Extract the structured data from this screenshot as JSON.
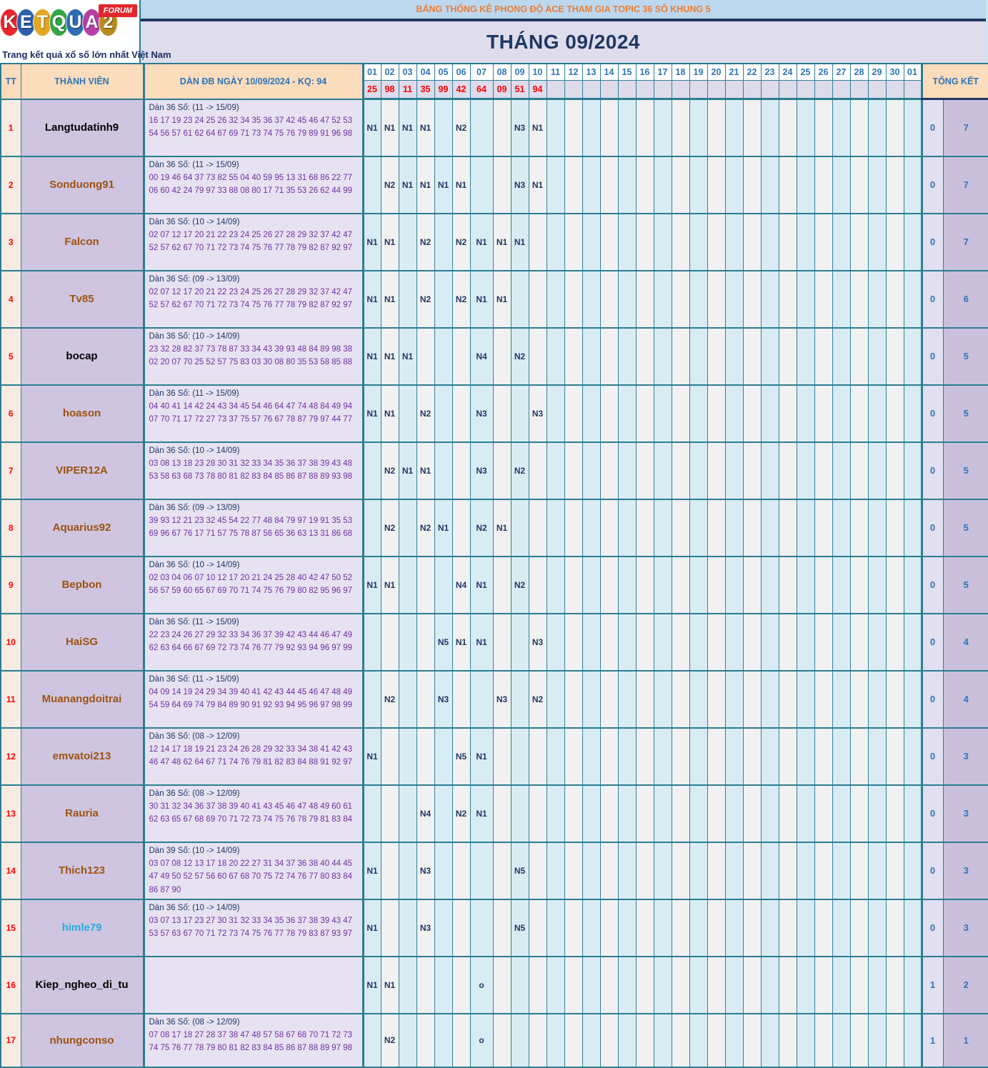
{
  "logo": {
    "letters": [
      {
        "ch": "K",
        "bg": "#e8262d"
      },
      {
        "ch": "E",
        "bg": "#2b5fac"
      },
      {
        "ch": "T",
        "bg": "#e3a723"
      },
      {
        "ch": "Q",
        "bg": "#33a646"
      },
      {
        "ch": "U",
        "bg": "#2e6db4"
      },
      {
        "ch": "A",
        "bg": "#b43ea5"
      },
      {
        "ch": "2",
        "bg": "#b78a1e"
      }
    ],
    "forum_badge": "FORUM",
    "tagline": "Trang kết quả xổ số lớn nhất Việt Nam"
  },
  "header": {
    "top_title": "BẢNG THỐNG KÊ PHONG ĐỘ ACE THAM GIA TOPIC 36 SỐ KHUNG 5",
    "month_title": "THÁNG 09/2024"
  },
  "columns": {
    "tt": "TT",
    "member": "THÀNH VIÊN",
    "dan": "DÀN ĐB NGÀY 10/09/2024 - KQ: 94",
    "total": "TỔNG KẾT",
    "days": [
      "01",
      "02",
      "03",
      "04",
      "05",
      "06",
      "07",
      "08",
      "09",
      "10",
      "11",
      "12",
      "13",
      "14",
      "15",
      "16",
      "17",
      "18",
      "19",
      "20",
      "21",
      "22",
      "23",
      "24",
      "25",
      "26",
      "27",
      "28",
      "29",
      "30",
      "01"
    ]
  },
  "results": [
    "25",
    "98",
    "11",
    "35",
    "99",
    "42",
    "64",
    "09",
    "51",
    "94"
  ],
  "colors": {
    "border_teal": "#2b7d92",
    "navy": "#1f3864",
    "orange_title": "#ed7d31",
    "blue_header_text": "#2e75b6",
    "red_result": "#ff0000",
    "purple_numbers": "#7030a0",
    "member_brown": "#9c5312",
    "member_cyan": "#29abe2"
  },
  "rows": [
    {
      "tt": "1",
      "name": "Langtudatinh9",
      "name_color": "#000000",
      "dan_title": "Dàn 36 Số: (11 -> 15/09)",
      "dan_numbers": "16 17 19 23 24 25 26 32 34 35 36 37 42 45 46 47 52 53 54 56 57 61 62 64 67 69 71 73 74 75 76 79 89 91 96 98",
      "marks": {
        "1": "N1",
        "2": "N1",
        "3": "N1",
        "4": "N1",
        "6": "N2",
        "9": "N3",
        "10": "N1"
      },
      "total1": "0",
      "total2": "7"
    },
    {
      "tt": "2",
      "name": "Sonduong91",
      "name_color": "#9c5312",
      "dan_title": "Dàn 36 Số: (11 -> 15/09)",
      "dan_numbers": "00 19 46 64 37 73 82 55 04 40 59 95 13 31 68 86 22 77 06 60 42 24 79 97 33 88 08 80 17 71 35 53 26 62 44 99",
      "marks": {
        "2": "N2",
        "3": "N1",
        "4": "N1",
        "5": "N1",
        "6": "N1",
        "9": "N3",
        "10": "N1"
      },
      "total1": "0",
      "total2": "7"
    },
    {
      "tt": "3",
      "name": "Falcon",
      "name_color": "#9c5312",
      "dan_title": "Dàn 36 Số: (10 -> 14/09)",
      "dan_numbers": "02 07 12 17 20 21 22 23 24 25 26 27 28 29 32 37 42 47 52 57 62 67 70 71 72 73 74 75 76 77 78 79 82 87 92 97",
      "marks": {
        "1": "N1",
        "2": "N1",
        "4": "N2",
        "6": "N2",
        "7": "N1",
        "8": "N1",
        "9": "N1"
      },
      "total1": "0",
      "total2": "7"
    },
    {
      "tt": "4",
      "name": "Tv85",
      "name_color": "#9c5312",
      "dan_title": "Dàn 36 Số: (09 -> 13/09)",
      "dan_numbers": "02 07 12 17 20 21 22 23 24 25 26 27 28 29 32 37 42 47 52 57 62 67 70 71 72 73 74 75 76 77 78 79 82 87 92 97",
      "marks": {
        "1": "N1",
        "2": "N1",
        "4": "N2",
        "6": "N2",
        "7": "N1",
        "8": "N1"
      },
      "total1": "0",
      "total2": "6"
    },
    {
      "tt": "5",
      "name": "bocap",
      "name_color": "#000000",
      "dan_title": "Dàn 36 Số: (10 -> 14/09)",
      "dan_numbers": "23 32 28 82 37 73 78 87 33 34 43 39 93 48 84 89 98 38 02 20 07 70 25 52 57 75 83 03 30 08 80 35 53 58 85 88",
      "marks": {
        "1": "N1",
        "2": "N1",
        "3": "N1",
        "7": "N4",
        "9": "N2"
      },
      "total1": "0",
      "total2": "5"
    },
    {
      "tt": "6",
      "name": "hoason",
      "name_color": "#9c5312",
      "dan_title": "Dàn 36 Số: (11 -> 15/09)",
      "dan_numbers": "04 40 41 14 42 24 43 34 45 54 46 64 47 74 48 84 49 94 07 70 71 17 72 27 73 37 75 57 76 67 78 87 79 97 44 77",
      "marks": {
        "1": "N1",
        "2": "N1",
        "4": "N2",
        "7": "N3",
        "10": "N3"
      },
      "total1": "0",
      "total2": "5"
    },
    {
      "tt": "7",
      "name": "VIPER12A",
      "name_color": "#9c5312",
      "dan_title": "Dàn 36 Số: (10 -> 14/09)",
      "dan_numbers": "03 08 13 18 23 28 30 31 32 33 34 35 36 37 38 39 43 48 53 58 63 68 73 78 80 81 82 83 84 85 86 87 88 89 93 98",
      "marks": {
        "2": "N2",
        "3": "N1",
        "4": "N1",
        "7": "N3",
        "9": "N2"
      },
      "total1": "0",
      "total2": "5"
    },
    {
      "tt": "8",
      "name": "Aquarius92",
      "name_color": "#9c5312",
      "dan_title": "Dàn 36 Số: (09 -> 13/09)",
      "dan_numbers": "39 93 12 21 23 32 45 54 22 77 48 84 79 97 19 91 35 53 69 96 67 76 17 71 57 75 78 87 56 65 36 63 13 31 86 68",
      "marks": {
        "2": "N2",
        "4": "N2",
        "5": "N1",
        "7": "N2",
        "8": "N1"
      },
      "total1": "0",
      "total2": "5"
    },
    {
      "tt": "9",
      "name": "Bepbon",
      "name_color": "#9c5312",
      "dan_title": "Dàn 36 Số: (10 -> 14/09)",
      "dan_numbers": "02 03 04 06 07 10 12 17 20 21 24 25 28 40 42 47 50 52 56 57 59 60 65 67 69 70 71 74 75 76 79 80 82 95 96 97",
      "marks": {
        "1": "N1",
        "2": "N1",
        "6": "N4",
        "7": "N1",
        "9": "N2"
      },
      "total1": "0",
      "total2": "5"
    },
    {
      "tt": "10",
      "name": "HaiSG",
      "name_color": "#9c5312",
      "dan_title": "Dàn 36 Số: (11 -> 15/09)",
      "dan_numbers": "22 23 24 26 27 29 32 33 34 36 37 39 42 43 44 46 47 49 62 63 64 66 67 69 72 73 74 76 77 79 92 93 94 96 97 99",
      "marks": {
        "5": "N5",
        "6": "N1",
        "7": "N1",
        "10": "N3"
      },
      "total1": "0",
      "total2": "4"
    },
    {
      "tt": "11",
      "name": "Muanangdoitrai",
      "name_color": "#9c5312",
      "dan_title": "Dàn 36 Số: (11 -> 15/09)",
      "dan_numbers": "04 09 14 19 24 29 34 39 40 41 42 43 44 45 46 47 48 49 54 59 64 69 74 79 84 89 90 91 92 93 94 95 96 97 98 99",
      "marks": {
        "2": "N2",
        "5": "N3",
        "8": "N3",
        "10": "N2"
      },
      "total1": "0",
      "total2": "4"
    },
    {
      "tt": "12",
      "name": "emvatoi213",
      "name_color": "#9c5312",
      "dan_title": "Dàn 36 Số: (08 -> 12/09)",
      "dan_numbers": "12 14 17 18 19 21 23 24 26 28 29 32 33 34 38 41 42 43 46 47 48 62 64 67 71 74 76 79 81 82 83 84 88 91 92 97",
      "marks": {
        "1": "N1",
        "6": "N5",
        "7": "N1"
      },
      "total1": "0",
      "total2": "3"
    },
    {
      "tt": "13",
      "name": "Rauria",
      "name_color": "#9c5312",
      "dan_title": "Dàn 36 Số: (08 -> 12/09)",
      "dan_numbers": "30 31 32 34 36 37 38 39 40 41 43 45 46 47 48 49 60 61 62 63 65 67 68 69 70 71 72 73 74 75 76 78 79 81 83 84",
      "marks": {
        "4": "N4",
        "6": "N2",
        "7": "N1"
      },
      "total1": "0",
      "total2": "3"
    },
    {
      "tt": "14",
      "name": "Thich123",
      "name_color": "#9c5312",
      "dan_title": "Dàn 39 Số: (10 -> 14/09)",
      "dan_numbers": "03 07 08 12 13 17 18 20 22 27 31 34 37 36 38 40 44 45 47 49 50 52 57 56 60 67 68 70 75 72 74 76 77 80 83 84 86 87 90",
      "marks": {
        "1": "N1",
        "4": "N3",
        "9": "N5"
      },
      "total1": "0",
      "total2": "3"
    },
    {
      "tt": "15",
      "name": "himle79",
      "name_color": "#29abe2",
      "dan_title": "Dàn 36 Số: (10 -> 14/09)",
      "dan_numbers": "03 07 13 17 23 27 30 31 32 33 34 35 36 37 38 39 43 47 53 57 63 67 70 71 72 73 74 75 76 77 78 79 83 87 93 97",
      "marks": {
        "1": "N1",
        "4": "N3",
        "9": "N5"
      },
      "total1": "0",
      "total2": "3"
    },
    {
      "tt": "16",
      "name": "Kiep_ngheo_di_tu",
      "name_color": "#000000",
      "dan_title": "",
      "dan_numbers": "",
      "marks": {
        "1": "N1",
        "2": "N1",
        "7": "o"
      },
      "total1": "1",
      "total2": "2"
    },
    {
      "tt": "17",
      "name": "nhungconso",
      "name_color": "#9c5312",
      "dan_title": "Dàn 36 Số: (08 -> 12/09)",
      "dan_numbers": "07 08 17 18 27 28 37 38 47 48 57 58 67 68 70 71 72 73 74 75 76 77 78 79 80 81 82 83 84 85 86 87 88 89 97 98",
      "marks": {
        "2": "N2",
        "7": "o"
      },
      "total1": "1",
      "total2": "1"
    }
  ]
}
